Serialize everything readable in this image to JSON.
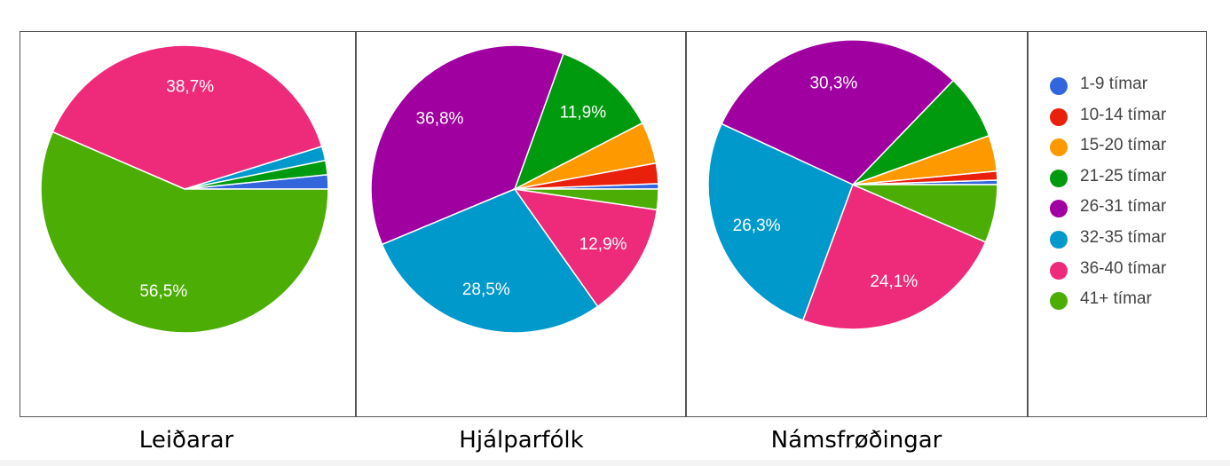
{
  "colors": {
    "1-9 tímar": "#3366dd",
    "10-14 tímar": "#e8200c",
    "15-20 tímar": "#ff9900",
    "21-25 tímar": "#009a0f",
    "26-31 tímar": "#a000a0",
    "32-35 tímar": "#0099cc",
    "36-40 tímar": "#ee2a7b",
    "41+ tímar": "#4cae04"
  },
  "legend": {
    "items": [
      "1-9 tímar",
      "10-14 tímar",
      "15-20 tímar",
      "21-25 tímar",
      "26-31 tímar",
      "32-35 tímar",
      "36-40 tímar",
      "41+ tímar"
    ]
  },
  "chart_data": [
    {
      "type": "pie",
      "title": "Leiðarar",
      "slices": [
        {
          "label": "1-9 tímar",
          "value": 1.6,
          "display": ""
        },
        {
          "label": "10-14 tímar",
          "value": 0,
          "display": ""
        },
        {
          "label": "15-20 tímar",
          "value": 0,
          "display": ""
        },
        {
          "label": "21-25 tímar",
          "value": 1.6,
          "display": ""
        },
        {
          "label": "26-31 tímar",
          "value": 0,
          "display": ""
        },
        {
          "label": "32-35 tímar",
          "value": 1.6,
          "display": ""
        },
        {
          "label": "36-40 tímar",
          "value": 38.7,
          "display": "38,7%"
        },
        {
          "label": "41+ tímar",
          "value": 56.5,
          "display": "56,5%"
        }
      ]
    },
    {
      "type": "pie",
      "title": "Hjálparfólk",
      "slices": [
        {
          "label": "1-9 tímar",
          "value": 0.6,
          "display": ""
        },
        {
          "label": "10-14 tímar",
          "value": 2.3,
          "display": ""
        },
        {
          "label": "15-20 tímar",
          "value": 4.7,
          "display": ""
        },
        {
          "label": "21-25 tímar",
          "value": 11.9,
          "display": "11,9%"
        },
        {
          "label": "26-31 tímar",
          "value": 36.8,
          "display": "36,8%"
        },
        {
          "label": "32-35 tímar",
          "value": 28.5,
          "display": "28,5%"
        },
        {
          "label": "36-40 tímar",
          "value": 12.9,
          "display": "12,9%"
        },
        {
          "label": "41+ tímar",
          "value": 2.3,
          "display": ""
        }
      ]
    },
    {
      "type": "pie",
      "title": "Námsfrøðingar",
      "slices": [
        {
          "label": "1-9 tímar",
          "value": 0.5,
          "display": ""
        },
        {
          "label": "10-14 tímar",
          "value": 1.0,
          "display": ""
        },
        {
          "label": "15-20 tímar",
          "value": 4.0,
          "display": ""
        },
        {
          "label": "21-25 tímar",
          "value": 7.3,
          "display": ""
        },
        {
          "label": "26-31 tímar",
          "value": 30.3,
          "display": "30,3%"
        },
        {
          "label": "32-35 tímar",
          "value": 26.3,
          "display": "26,3%"
        },
        {
          "label": "36-40 tímar",
          "value": 24.1,
          "display": "24,1%"
        },
        {
          "label": "41+ tímar",
          "value": 6.5,
          "display": ""
        }
      ]
    }
  ]
}
